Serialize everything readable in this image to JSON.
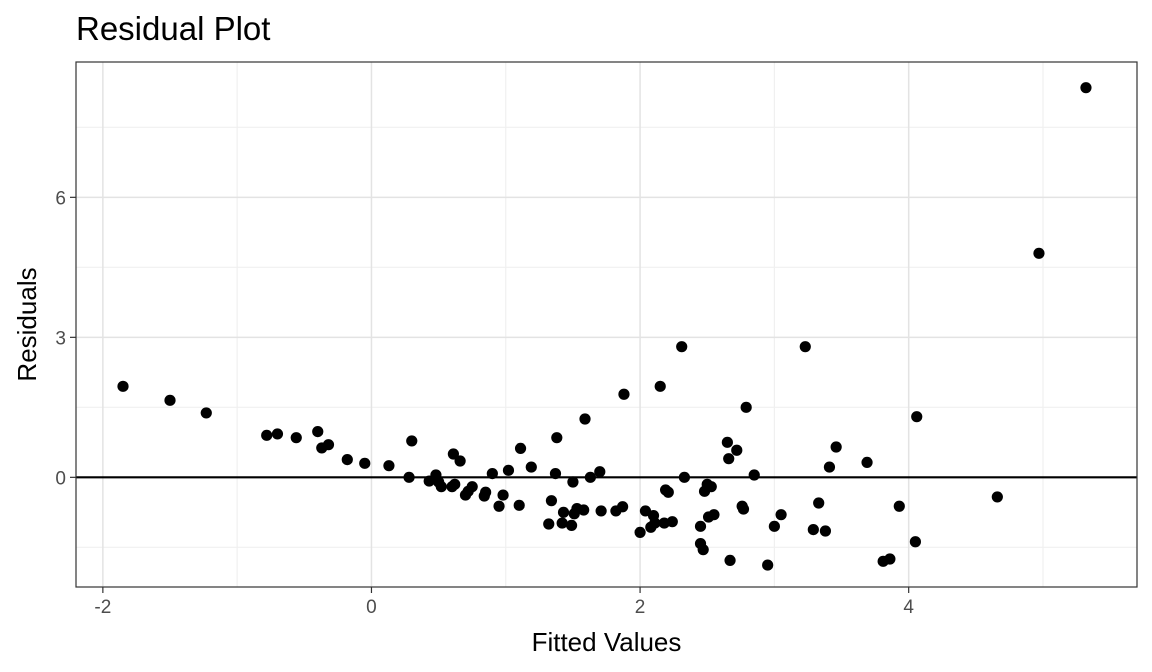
{
  "chart_data": {
    "type": "scatter",
    "title": "Residual Plot",
    "xlabel": "Fitted Values",
    "ylabel": "Residuals",
    "xlim": [
      -2.2,
      5.7
    ],
    "ylim": [
      -2.35,
      8.9
    ],
    "x_ticks": [
      -2,
      0,
      2,
      4
    ],
    "x_tick_labels": [
      "-2",
      "0",
      "2",
      "4"
    ],
    "y_ticks": [
      0,
      3,
      6
    ],
    "y_tick_labels": [
      "0",
      "3",
      "6"
    ],
    "grid": true,
    "reference_line": 0,
    "point_color": "#000000",
    "points": [
      [
        -1.85,
        1.95
      ],
      [
        -1.5,
        1.65
      ],
      [
        -1.23,
        1.38
      ],
      [
        -0.78,
        0.9
      ],
      [
        -0.7,
        0.93
      ],
      [
        -0.56,
        0.85
      ],
      [
        -0.4,
        0.98
      ],
      [
        -0.37,
        0.63
      ],
      [
        -0.32,
        0.7
      ],
      [
        -0.18,
        0.38
      ],
      [
        -0.05,
        0.3
      ],
      [
        0.13,
        0.25
      ],
      [
        0.28,
        0.0
      ],
      [
        0.3,
        0.78
      ],
      [
        0.43,
        -0.08
      ],
      [
        0.48,
        0.05
      ],
      [
        0.5,
        -0.1
      ],
      [
        0.52,
        -0.2
      ],
      [
        0.6,
        -0.2
      ],
      [
        0.61,
        0.5
      ],
      [
        0.62,
        -0.15
      ],
      [
        0.66,
        0.35
      ],
      [
        0.7,
        -0.38
      ],
      [
        0.72,
        -0.3
      ],
      [
        0.75,
        -0.2
      ],
      [
        0.84,
        -0.4
      ],
      [
        0.85,
        -0.32
      ],
      [
        0.9,
        0.08
      ],
      [
        0.95,
        -0.62
      ],
      [
        0.98,
        -0.38
      ],
      [
        1.02,
        0.15
      ],
      [
        1.1,
        -0.6
      ],
      [
        1.11,
        0.62
      ],
      [
        1.19,
        0.22
      ],
      [
        1.32,
        -1.0
      ],
      [
        1.34,
        -0.5
      ],
      [
        1.37,
        0.08
      ],
      [
        1.38,
        0.85
      ],
      [
        1.42,
        -0.98
      ],
      [
        1.43,
        -0.75
      ],
      [
        1.49,
        -1.03
      ],
      [
        1.5,
        -0.1
      ],
      [
        1.51,
        -0.78
      ],
      [
        1.53,
        -0.67
      ],
      [
        1.58,
        -0.7
      ],
      [
        1.59,
        1.25
      ],
      [
        1.63,
        0.0
      ],
      [
        1.7,
        0.12
      ],
      [
        1.71,
        -0.72
      ],
      [
        1.82,
        -0.72
      ],
      [
        1.87,
        -0.63
      ],
      [
        1.88,
        1.78
      ],
      [
        2.0,
        -1.18
      ],
      [
        2.04,
        -0.72
      ],
      [
        2.08,
        -1.07
      ],
      [
        2.1,
        -0.82
      ],
      [
        2.11,
        -0.98
      ],
      [
        2.15,
        1.95
      ],
      [
        2.18,
        -0.98
      ],
      [
        2.19,
        -0.27
      ],
      [
        2.21,
        -0.32
      ],
      [
        2.24,
        -0.95
      ],
      [
        2.31,
        2.8
      ],
      [
        2.33,
        0.0
      ],
      [
        2.45,
        -1.05
      ],
      [
        2.45,
        -1.42
      ],
      [
        2.47,
        -1.55
      ],
      [
        2.48,
        -0.3
      ],
      [
        2.5,
        -0.15
      ],
      [
        2.51,
        -0.85
      ],
      [
        2.53,
        -0.2
      ],
      [
        2.55,
        -0.8
      ],
      [
        2.65,
        0.75
      ],
      [
        2.66,
        0.4
      ],
      [
        2.67,
        -1.78
      ],
      [
        2.72,
        0.58
      ],
      [
        2.76,
        -0.62
      ],
      [
        2.77,
        -0.68
      ],
      [
        2.79,
        1.5
      ],
      [
        2.85,
        0.05
      ],
      [
        2.95,
        -1.88
      ],
      [
        3.0,
        -1.05
      ],
      [
        3.05,
        -0.8
      ],
      [
        3.23,
        2.8
      ],
      [
        3.29,
        -1.12
      ],
      [
        3.33,
        -0.55
      ],
      [
        3.38,
        -1.15
      ],
      [
        3.41,
        0.22
      ],
      [
        3.46,
        0.65
      ],
      [
        3.69,
        0.32
      ],
      [
        3.81,
        -1.8
      ],
      [
        3.86,
        -1.75
      ],
      [
        3.93,
        -0.62
      ],
      [
        4.05,
        -1.38
      ],
      [
        4.06,
        1.3
      ],
      [
        4.66,
        -0.42
      ],
      [
        4.97,
        4.8
      ],
      [
        5.32,
        8.35
      ]
    ]
  }
}
